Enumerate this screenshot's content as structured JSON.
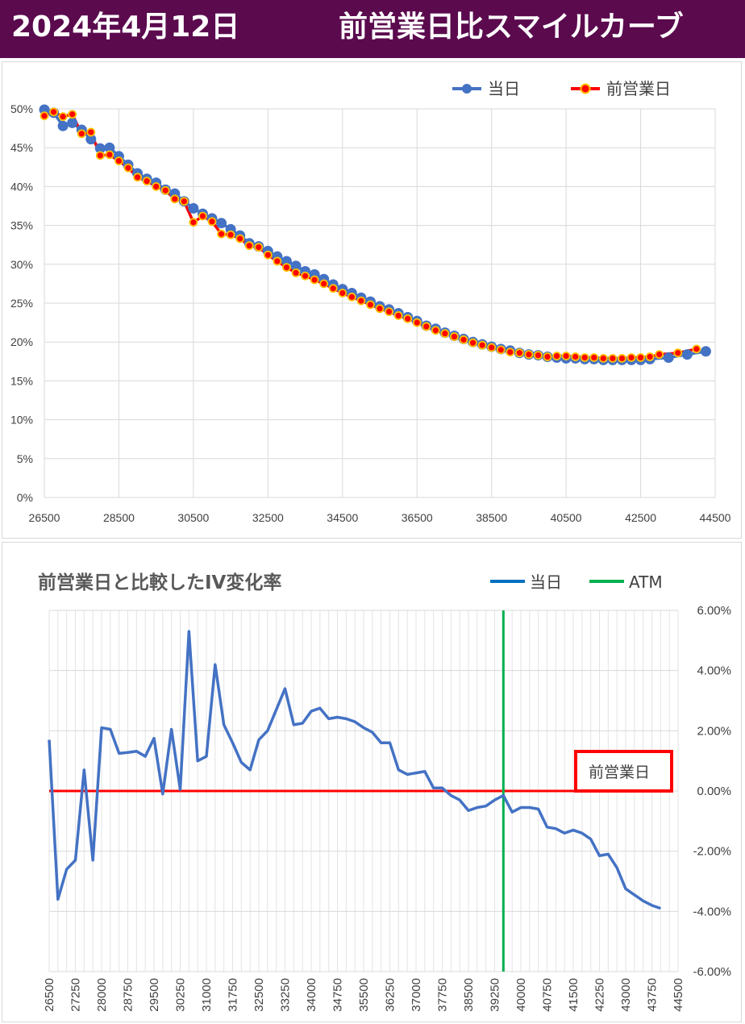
{
  "header": {
    "date": "2024年4月12日",
    "title": "前営業日比スマイルカーブ",
    "bg_color": "#5b0a4e"
  },
  "chart_data": [
    {
      "type": "line",
      "title": "",
      "xlabel": "",
      "ylabel": "",
      "xlim": [
        26500,
        44500
      ],
      "ylim": [
        0,
        0.5
      ],
      "x_ticks": [
        "26500",
        "28500",
        "30500",
        "32500",
        "34500",
        "36500",
        "38500",
        "40500",
        "42500",
        "44500"
      ],
      "y_ticks": [
        "0%",
        "5%",
        "10%",
        "15%",
        "20%",
        "25%",
        "30%",
        "35%",
        "40%",
        "45%",
        "50%"
      ],
      "grid": true,
      "legend_position": "top-right",
      "series": [
        {
          "name": "当日",
          "color": "#4472c4",
          "points": [
            [
              26500,
              49.9
            ],
            [
              26750,
              49.5
            ],
            [
              27000,
              47.8
            ],
            [
              27250,
              48.2
            ],
            [
              27500,
              47.3
            ],
            [
              27750,
              46.1
            ],
            [
              28000,
              44.9
            ],
            [
              28250,
              45.0
            ],
            [
              28500,
              43.9
            ],
            [
              28750,
              42.8
            ],
            [
              29000,
              41.7
            ],
            [
              29250,
              41.0
            ],
            [
              29500,
              40.5
            ],
            [
              29750,
              39.6
            ],
            [
              30000,
              39.1
            ],
            [
              30250,
              38.1
            ],
            [
              30500,
              37.2
            ],
            [
              30750,
              36.5
            ],
            [
              31000,
              35.9
            ],
            [
              31250,
              35.3
            ],
            [
              31500,
              34.5
            ],
            [
              31750,
              33.7
            ],
            [
              32000,
              32.7
            ],
            [
              32250,
              32.3
            ],
            [
              32500,
              31.7
            ],
            [
              32750,
              31.0
            ],
            [
              33000,
              30.4
            ],
            [
              33250,
              29.8
            ],
            [
              33500,
              29.1
            ],
            [
              33750,
              28.7
            ],
            [
              34000,
              28.1
            ],
            [
              34250,
              27.4
            ],
            [
              34500,
              26.8
            ],
            [
              34750,
              26.3
            ],
            [
              35000,
              25.7
            ],
            [
              35250,
              25.2
            ],
            [
              35500,
              24.6
            ],
            [
              35750,
              24.2
            ],
            [
              36000,
              23.7
            ],
            [
              36250,
              23.2
            ],
            [
              36500,
              22.7
            ],
            [
              36750,
              22.1
            ],
            [
              37000,
              21.7
            ],
            [
              37250,
              21.2
            ],
            [
              37500,
              20.8
            ],
            [
              37750,
              20.4
            ],
            [
              38000,
              20.0
            ],
            [
              38250,
              19.7
            ],
            [
              38500,
              19.4
            ],
            [
              38750,
              19.1
            ],
            [
              39000,
              18.9
            ],
            [
              39250,
              18.6
            ],
            [
              39500,
              18.4
            ],
            [
              39750,
              18.3
            ],
            [
              40000,
              18.1
            ],
            [
              40250,
              18.0
            ],
            [
              40500,
              17.9
            ],
            [
              40750,
              17.9
            ],
            [
              41000,
              17.8
            ],
            [
              41250,
              17.8
            ],
            [
              41500,
              17.7
            ],
            [
              41750,
              17.7
            ],
            [
              42000,
              17.7
            ],
            [
              42250,
              17.7
            ],
            [
              42500,
              17.7
            ],
            [
              42750,
              17.8
            ],
            [
              43250,
              18.0
            ],
            [
              43750,
              18.4
            ],
            [
              44250,
              18.8
            ]
          ]
        },
        {
          "name": "前営業日",
          "color": "#ff0000",
          "points": [
            [
              26500,
              49.1
            ],
            [
              26750,
              49.6
            ],
            [
              27000,
              49.0
            ],
            [
              27250,
              49.3
            ],
            [
              27500,
              46.8
            ],
            [
              27750,
              47.0
            ],
            [
              28000,
              44.0
            ],
            [
              28250,
              44.1
            ],
            [
              28500,
              43.3
            ],
            [
              28750,
              42.4
            ],
            [
              29000,
              41.2
            ],
            [
              29250,
              40.7
            ],
            [
              29500,
              40.0
            ],
            [
              29750,
              39.5
            ],
            [
              30000,
              38.4
            ],
            [
              30250,
              38.1
            ],
            [
              30500,
              35.4
            ],
            [
              30750,
              36.2
            ],
            [
              31000,
              35.5
            ],
            [
              31250,
              33.9
            ],
            [
              31500,
              33.8
            ],
            [
              31750,
              33.3
            ],
            [
              32000,
              32.4
            ],
            [
              32250,
              32.2
            ],
            [
              32500,
              31.2
            ],
            [
              32750,
              30.4
            ],
            [
              33000,
              29.6
            ],
            [
              33250,
              28.9
            ],
            [
              33500,
              28.5
            ],
            [
              33750,
              28.0
            ],
            [
              34000,
              27.5
            ],
            [
              34250,
              26.9
            ],
            [
              34500,
              26.3
            ],
            [
              34750,
              25.8
            ],
            [
              35000,
              25.3
            ],
            [
              35250,
              24.8
            ],
            [
              35500,
              24.3
            ],
            [
              35750,
              23.9
            ],
            [
              36000,
              23.4
            ],
            [
              36250,
              23.0
            ],
            [
              36500,
              22.5
            ],
            [
              36750,
              22.0
            ],
            [
              37000,
              21.5
            ],
            [
              37250,
              21.1
            ],
            [
              37500,
              20.7
            ],
            [
              37750,
              20.3
            ],
            [
              38000,
              19.9
            ],
            [
              38250,
              19.6
            ],
            [
              38500,
              19.3
            ],
            [
              38750,
              19.0
            ],
            [
              39000,
              18.7
            ],
            [
              39250,
              18.6
            ],
            [
              39500,
              18.4
            ],
            [
              39750,
              18.3
            ],
            [
              40000,
              18.1
            ],
            [
              40250,
              18.2
            ],
            [
              40500,
              18.2
            ],
            [
              40750,
              18.1
            ],
            [
              41000,
              18.0
            ],
            [
              41250,
              18.0
            ],
            [
              41500,
              17.9
            ],
            [
              41750,
              17.9
            ],
            [
              42000,
              17.9
            ],
            [
              42250,
              18.0
            ],
            [
              42500,
              18.0
            ],
            [
              42750,
              18.1
            ],
            [
              43000,
              18.4
            ],
            [
              43500,
              18.6
            ],
            [
              44000,
              19.1
            ]
          ]
        }
      ]
    },
    {
      "type": "line",
      "title": "前営業日と比較したIV変化率",
      "xlabel": "",
      "ylabel": "",
      "xlim": [
        26500,
        44500
      ],
      "ylim": [
        -0.06,
        0.06
      ],
      "x_ticks": [
        "26500",
        "27250",
        "28000",
        "28750",
        "29500",
        "30250",
        "31000",
        "31750",
        "32500",
        "33250",
        "34000",
        "34750",
        "35500",
        "36250",
        "37000",
        "37750",
        "38500",
        "39250",
        "40000",
        "40750",
        "41500",
        "42250",
        "43000",
        "43750",
        "44500"
      ],
      "y_ticks": [
        "-6.00%",
        "-4.00%",
        "-2.00%",
        "0.00%",
        "2.00%",
        "4.00%",
        "6.00%"
      ],
      "grid": true,
      "legend_position": "top-right",
      "atm": 39500,
      "annotation": "前営業日",
      "series": [
        {
          "name": "当日",
          "color": "#4472c4",
          "points": [
            [
              26500,
              1.7
            ],
            [
              26750,
              -3.6
            ],
            [
              27000,
              -2.6
            ],
            [
              27250,
              -2.3
            ],
            [
              27500,
              0.7
            ],
            [
              27750,
              -2.3
            ],
            [
              28000,
              2.1
            ],
            [
              28250,
              2.05
            ],
            [
              28500,
              1.25
            ],
            [
              28750,
              1.28
            ],
            [
              29000,
              1.32
            ],
            [
              29250,
              1.15
            ],
            [
              29500,
              1.75
            ],
            [
              29750,
              -0.1
            ],
            [
              30000,
              2.05
            ],
            [
              30250,
              0.05
            ],
            [
              30500,
              5.3
            ],
            [
              30750,
              1.0
            ],
            [
              31000,
              1.15
            ],
            [
              31250,
              4.2
            ],
            [
              31500,
              2.2
            ],
            [
              31750,
              1.6
            ],
            [
              32000,
              0.95
            ],
            [
              32250,
              0.7
            ],
            [
              32500,
              1.7
            ],
            [
              32750,
              2.0
            ],
            [
              33000,
              2.7
            ],
            [
              33250,
              3.4
            ],
            [
              33500,
              2.2
            ],
            [
              33750,
              2.25
            ],
            [
              34000,
              2.65
            ],
            [
              34250,
              2.75
            ],
            [
              34500,
              2.4
            ],
            [
              34750,
              2.45
            ],
            [
              35000,
              2.4
            ],
            [
              35250,
              2.3
            ],
            [
              35500,
              2.1
            ],
            [
              35750,
              1.95
            ],
            [
              36000,
              1.6
            ],
            [
              36250,
              1.6
            ],
            [
              36500,
              0.7
            ],
            [
              36750,
              0.55
            ],
            [
              37000,
              0.6
            ],
            [
              37250,
              0.65
            ],
            [
              37500,
              0.1
            ],
            [
              37750,
              0.1
            ],
            [
              38000,
              -0.15
            ],
            [
              38250,
              -0.3
            ],
            [
              38500,
              -0.65
            ],
            [
              38750,
              -0.55
            ],
            [
              39000,
              -0.5
            ],
            [
              39250,
              -0.3
            ],
            [
              39500,
              -0.15
            ],
            [
              39750,
              -0.7
            ],
            [
              40000,
              -0.55
            ],
            [
              40250,
              -0.55
            ],
            [
              40500,
              -0.6
            ],
            [
              40750,
              -1.2
            ],
            [
              41000,
              -1.25
            ],
            [
              41250,
              -1.4
            ],
            [
              41500,
              -1.3
            ],
            [
              41750,
              -1.4
            ],
            [
              42000,
              -1.6
            ],
            [
              42250,
              -2.15
            ],
            [
              42500,
              -2.1
            ],
            [
              42750,
              -2.55
            ],
            [
              43000,
              -3.25
            ],
            [
              43250,
              -3.45
            ],
            [
              43500,
              -3.65
            ],
            [
              43750,
              -3.8
            ],
            [
              44000,
              -3.9
            ]
          ]
        },
        {
          "name": "前営業日",
          "color": "#ff0000",
          "points": [
            [
              26500,
              0
            ],
            [
              44000,
              0
            ]
          ]
        },
        {
          "name": "ATM",
          "color": "#00b050",
          "points": []
        }
      ]
    }
  ]
}
